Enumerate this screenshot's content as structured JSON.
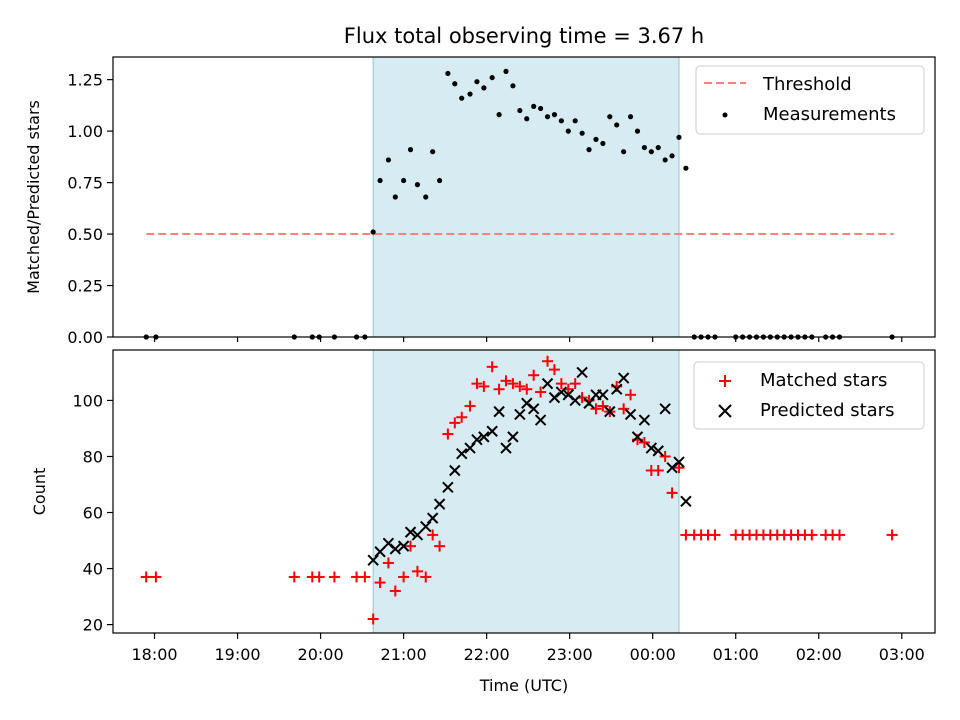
{
  "chart_data": [
    {
      "type": "scatter",
      "title": "Flux total observing time = 3.67 h",
      "xlabel": "",
      "ylabel": "Matched/Predicted stars",
      "ylim": [
        0,
        1.36
      ],
      "yticks": [
        "0.00",
        "0.25",
        "0.50",
        "0.75",
        "1.00",
        "1.25"
      ],
      "grid": false,
      "legend_position": "top-right",
      "shaded_interval": [
        "20:38",
        "00:19"
      ],
      "threshold": {
        "name": "Threshold",
        "value": 0.5,
        "x_range": [
          "17:54",
          "02:54"
        ],
        "color": "#ff7f7f"
      },
      "series": [
        {
          "name": "Measurements",
          "color": "#000000",
          "points": [
            [
              "17:54",
              0
            ],
            [
              "18:01",
              0
            ],
            [
              "19:41",
              0
            ],
            [
              "19:54",
              0
            ],
            [
              "19:59",
              0
            ],
            [
              "20:10",
              0
            ],
            [
              "20:26",
              0
            ],
            [
              "20:32",
              0
            ],
            [
              "20:38",
              0.51
            ],
            [
              "20:43",
              0.76
            ],
            [
              "20:49",
              0.86
            ],
            [
              "20:54",
              0.68
            ],
            [
              "21:00",
              0.76
            ],
            [
              "21:05",
              0.91
            ],
            [
              "21:10",
              0.74
            ],
            [
              "21:16",
              0.68
            ],
            [
              "21:21",
              0.9
            ],
            [
              "21:26",
              0.76
            ],
            [
              "21:32",
              1.28
            ],
            [
              "21:37",
              1.23
            ],
            [
              "21:42",
              1.16
            ],
            [
              "21:48",
              1.18
            ],
            [
              "21:53",
              1.24
            ],
            [
              "21:58",
              1.21
            ],
            [
              "22:04",
              1.26
            ],
            [
              "22:09",
              1.08
            ],
            [
              "22:14",
              1.29
            ],
            [
              "22:19",
              1.22
            ],
            [
              "22:24",
              1.1
            ],
            [
              "22:29",
              1.06
            ],
            [
              "22:34",
              1.12
            ],
            [
              "22:39",
              1.11
            ],
            [
              "22:44",
              1.07
            ],
            [
              "22:49",
              1.08
            ],
            [
              "22:54",
              1.05
            ],
            [
              "22:59",
              1.0
            ],
            [
              "23:04",
              1.05
            ],
            [
              "23:09",
              0.99
            ],
            [
              "23:14",
              0.91
            ],
            [
              "23:19",
              0.96
            ],
            [
              "23:24",
              0.94
            ],
            [
              "23:29",
              1.07
            ],
            [
              "23:34",
              1.03
            ],
            [
              "23:39",
              0.9
            ],
            [
              "23:44",
              1.07
            ],
            [
              "23:49",
              1.0
            ],
            [
              "23:54",
              0.92
            ],
            [
              "23:59",
              0.9
            ],
            [
              "00:04",
              0.92
            ],
            [
              "00:09",
              0.86
            ],
            [
              "00:14",
              0.88
            ],
            [
              "00:19",
              0.97
            ],
            [
              "00:24",
              0.82
            ],
            [
              "00:30",
              0
            ],
            [
              "00:35",
              0
            ],
            [
              "00:40",
              0
            ],
            [
              "00:45",
              0
            ],
            [
              "01:00",
              0
            ],
            [
              "01:05",
              0
            ],
            [
              "01:10",
              0
            ],
            [
              "01:15",
              0
            ],
            [
              "01:20",
              0
            ],
            [
              "01:25",
              0
            ],
            [
              "01:30",
              0
            ],
            [
              "01:35",
              0
            ],
            [
              "01:40",
              0
            ],
            [
              "01:45",
              0
            ],
            [
              "01:50",
              0
            ],
            [
              "01:55",
              0
            ],
            [
              "02:05",
              0
            ],
            [
              "02:10",
              0
            ],
            [
              "02:15",
              0
            ],
            [
              "02:53",
              0
            ]
          ]
        }
      ]
    },
    {
      "type": "scatter",
      "title": "",
      "xlabel": "Time (UTC)",
      "ylabel": "Count",
      "ylim": [
        17,
        118
      ],
      "yticks": [
        "20",
        "40",
        "60",
        "80",
        "100"
      ],
      "xticks": [
        "18:00",
        "19:00",
        "20:00",
        "21:00",
        "22:00",
        "23:00",
        "00:00",
        "01:00",
        "02:00",
        "03:00"
      ],
      "grid": false,
      "legend_position": "top-right",
      "shaded_interval": [
        "20:38",
        "00:19"
      ],
      "series": [
        {
          "name": "Matched stars",
          "color": "#ff0000",
          "marker": "+",
          "points": [
            [
              "17:54",
              37
            ],
            [
              "18:01",
              37
            ],
            [
              "19:41",
              37
            ],
            [
              "19:54",
              37
            ],
            [
              "19:59",
              37
            ],
            [
              "20:10",
              37
            ],
            [
              "20:26",
              37
            ],
            [
              "20:32",
              37
            ],
            [
              "20:38",
              22
            ],
            [
              "20:43",
              35
            ],
            [
              "20:49",
              42
            ],
            [
              "20:54",
              32
            ],
            [
              "21:00",
              37
            ],
            [
              "21:05",
              48
            ],
            [
              "21:10",
              39
            ],
            [
              "21:16",
              37
            ],
            [
              "21:21",
              52
            ],
            [
              "21:26",
              48
            ],
            [
              "21:32",
              88
            ],
            [
              "21:37",
              92
            ],
            [
              "21:42",
              94
            ],
            [
              "21:48",
              98
            ],
            [
              "21:53",
              106
            ],
            [
              "21:58",
              105
            ],
            [
              "22:04",
              112
            ],
            [
              "22:09",
              104
            ],
            [
              "22:14",
              107
            ],
            [
              "22:19",
              106
            ],
            [
              "22:24",
              105
            ],
            [
              "22:29",
              104
            ],
            [
              "22:34",
              109
            ],
            [
              "22:39",
              103
            ],
            [
              "22:44",
              114
            ],
            [
              "22:49",
              111
            ],
            [
              "22:54",
              106
            ],
            [
              "22:59",
              104
            ],
            [
              "23:04",
              106
            ],
            [
              "23:09",
              101
            ],
            [
              "23:14",
              100
            ],
            [
              "23:19",
              97
            ],
            [
              "23:24",
              98
            ],
            [
              "23:29",
              96
            ],
            [
              "23:34",
              105
            ],
            [
              "23:39",
              97
            ],
            [
              "23:44",
              102
            ],
            [
              "23:49",
              86
            ],
            [
              "23:54",
              85
            ],
            [
              "23:59",
              75
            ],
            [
              "00:04",
              75
            ],
            [
              "00:09",
              80
            ],
            [
              "00:14",
              67
            ],
            [
              "00:19",
              76
            ],
            [
              "00:24",
              52
            ],
            [
              "00:30",
              52
            ],
            [
              "00:35",
              52
            ],
            [
              "00:40",
              52
            ],
            [
              "00:45",
              52
            ],
            [
              "01:00",
              52
            ],
            [
              "01:05",
              52
            ],
            [
              "01:10",
              52
            ],
            [
              "01:15",
              52
            ],
            [
              "01:20",
              52
            ],
            [
              "01:25",
              52
            ],
            [
              "01:30",
              52
            ],
            [
              "01:35",
              52
            ],
            [
              "01:40",
              52
            ],
            [
              "01:45",
              52
            ],
            [
              "01:50",
              52
            ],
            [
              "01:55",
              52
            ],
            [
              "02:05",
              52
            ],
            [
              "02:10",
              52
            ],
            [
              "02:15",
              52
            ],
            [
              "02:53",
              52
            ]
          ]
        },
        {
          "name": "Predicted stars",
          "color": "#000000",
          "marker": "x",
          "points": [
            [
              "20:38",
              43
            ],
            [
              "20:43",
              46
            ],
            [
              "20:49",
              49
            ],
            [
              "20:54",
              47
            ],
            [
              "21:00",
              48
            ],
            [
              "21:05",
              53
            ],
            [
              "21:10",
              52
            ],
            [
              "21:16",
              55
            ],
            [
              "21:21",
              58
            ],
            [
              "21:26",
              63
            ],
            [
              "21:32",
              69
            ],
            [
              "21:37",
              75
            ],
            [
              "21:42",
              81
            ],
            [
              "21:48",
              83
            ],
            [
              "21:53",
              86
            ],
            [
              "21:58",
              87
            ],
            [
              "22:04",
              89
            ],
            [
              "22:09",
              96
            ],
            [
              "22:14",
              83
            ],
            [
              "22:19",
              87
            ],
            [
              "22:24",
              95
            ],
            [
              "22:29",
              99
            ],
            [
              "22:34",
              97
            ],
            [
              "22:39",
              93
            ],
            [
              "22:44",
              106
            ],
            [
              "22:49",
              101
            ],
            [
              "22:54",
              103
            ],
            [
              "22:59",
              102
            ],
            [
              "23:04",
              100
            ],
            [
              "23:09",
              110
            ],
            [
              "23:14",
              99
            ],
            [
              "23:19",
              102
            ],
            [
              "23:24",
              102
            ],
            [
              "23:29",
              96
            ],
            [
              "23:34",
              104
            ],
            [
              "23:39",
              108
            ],
            [
              "23:44",
              95
            ],
            [
              "23:49",
              87
            ],
            [
              "23:54",
              93
            ],
            [
              "23:59",
              83
            ],
            [
              "00:04",
              82
            ],
            [
              "00:09",
              97
            ],
            [
              "00:14",
              76
            ],
            [
              "00:19",
              78
            ],
            [
              "00:24",
              64
            ]
          ]
        }
      ]
    }
  ]
}
